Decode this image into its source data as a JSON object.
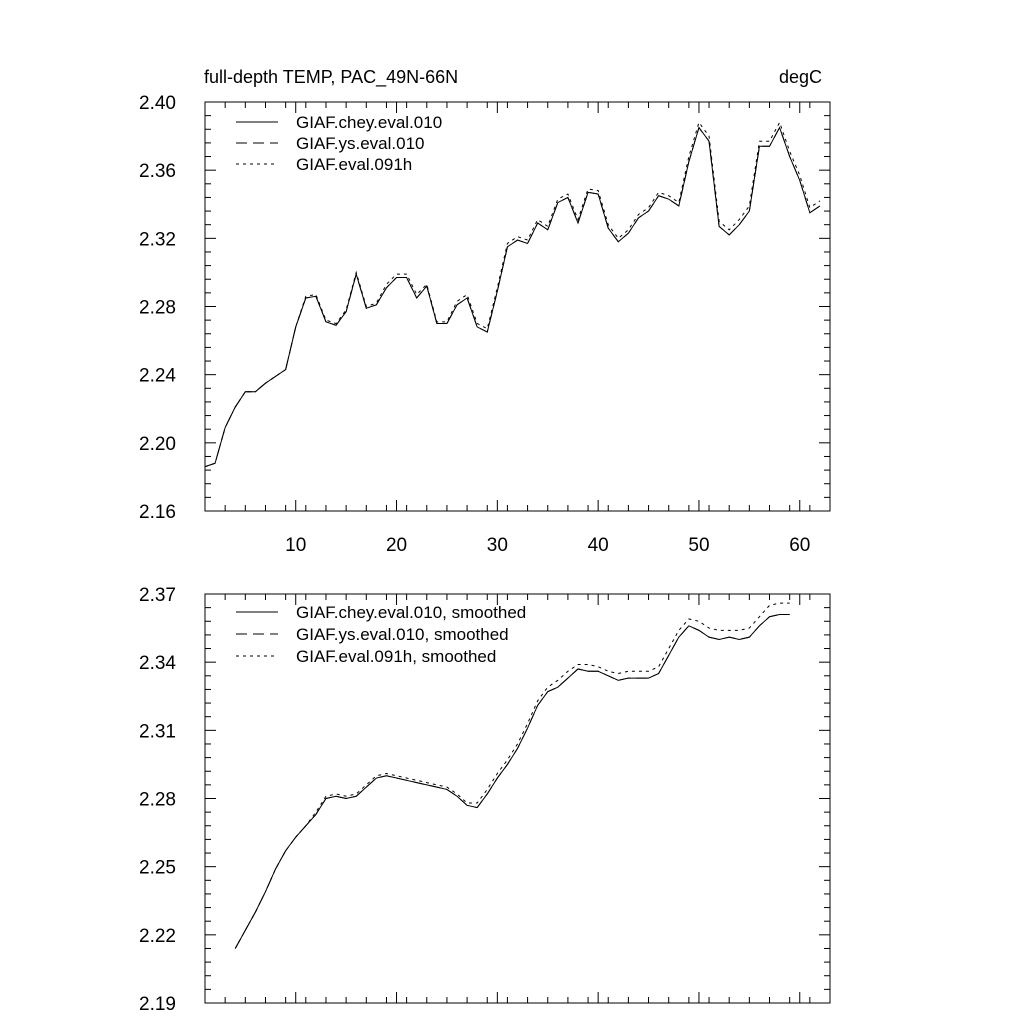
{
  "chart_data": [
    {
      "type": "line",
      "title_left": "full-depth TEMP, PAC_49N-66N",
      "title_right": "degC",
      "xlim": [
        1,
        63
      ],
      "ylim": [
        2.16,
        2.4
      ],
      "xticks": [
        10,
        20,
        30,
        40,
        50,
        60
      ],
      "xtick_labels": [
        "10",
        "20",
        "30",
        "40",
        "50",
        "60"
      ],
      "yticks": [
        2.16,
        2.2,
        2.24,
        2.28,
        2.32,
        2.36,
        2.4
      ],
      "ytick_labels": [
        "2.16",
        "2.20",
        "2.24",
        "2.28",
        "2.32",
        "2.36",
        "2.40"
      ],
      "x": [
        1,
        2,
        3,
        4,
        5,
        6,
        7,
        8,
        9,
        10,
        11,
        12,
        13,
        14,
        15,
        16,
        17,
        18,
        19,
        20,
        21,
        22,
        23,
        24,
        25,
        26,
        27,
        28,
        29,
        30,
        31,
        32,
        33,
        34,
        35,
        36,
        37,
        38,
        39,
        40,
        41,
        42,
        43,
        44,
        45,
        46,
        47,
        48,
        49,
        50,
        51,
        52,
        53,
        54,
        55,
        56,
        57,
        58,
        59,
        60,
        61,
        62
      ],
      "series": [
        {
          "name": "GIAF.chey.eval.010",
          "dash": "solid",
          "values": [
            2.186,
            2.188,
            2.209,
            2.221,
            2.23,
            2.23,
            2.235,
            2.239,
            2.243,
            2.268,
            2.285,
            2.286,
            2.271,
            2.269,
            2.277,
            2.299,
            2.279,
            2.281,
            2.291,
            2.297,
            2.297,
            2.285,
            2.292,
            2.27,
            2.27,
            2.281,
            2.285,
            2.268,
            2.265,
            2.289,
            2.315,
            2.319,
            2.317,
            2.329,
            2.325,
            2.341,
            2.344,
            2.329,
            2.347,
            2.346,
            2.326,
            2.318,
            2.323,
            2.332,
            2.336,
            2.345,
            2.343,
            2.339,
            2.365,
            2.385,
            2.377,
            2.327,
            2.322,
            2.328,
            2.336,
            2.374,
            2.374,
            2.385,
            2.368,
            2.354,
            2.335,
            2.339
          ]
        },
        {
          "name": "GIAF.ys.eval.010",
          "dash": "long",
          "values": [
            2.186,
            2.188,
            2.209,
            2.221,
            2.23,
            2.23,
            2.235,
            2.239,
            2.243,
            2.268,
            2.285,
            2.286,
            2.271,
            2.269,
            2.277,
            2.299,
            2.279,
            2.281,
            2.291,
            2.297,
            2.297,
            2.285,
            2.292,
            2.27,
            2.27,
            2.281,
            2.285,
            2.268,
            2.265,
            2.289,
            2.315,
            2.319,
            2.317,
            2.329,
            2.325,
            2.341,
            2.344,
            2.329,
            2.347,
            2.346,
            2.326,
            2.318,
            2.323,
            2.332,
            2.336,
            2.345,
            2.343,
            2.339,
            2.365,
            2.385,
            2.377,
            2.327,
            2.322,
            2.328,
            2.336,
            2.374,
            2.374,
            2.385,
            2.368,
            2.354,
            2.335,
            2.339
          ]
        },
        {
          "name": "GIAF.eval.091h",
          "dash": "short",
          "values": [
            2.186,
            2.188,
            2.209,
            2.221,
            2.23,
            2.23,
            2.235,
            2.239,
            2.243,
            2.268,
            2.286,
            2.287,
            2.272,
            2.27,
            2.278,
            2.3,
            2.28,
            2.282,
            2.293,
            2.299,
            2.299,
            2.287,
            2.293,
            2.271,
            2.271,
            2.283,
            2.287,
            2.27,
            2.267,
            2.291,
            2.317,
            2.321,
            2.319,
            2.331,
            2.327,
            2.343,
            2.346,
            2.331,
            2.349,
            2.348,
            2.328,
            2.32,
            2.325,
            2.334,
            2.338,
            2.347,
            2.345,
            2.341,
            2.368,
            2.388,
            2.38,
            2.33,
            2.325,
            2.331,
            2.339,
            2.377,
            2.377,
            2.388,
            2.371,
            2.357,
            2.338,
            2.342
          ]
        }
      ]
    },
    {
      "type": "line",
      "xlim": [
        1,
        63
      ],
      "ylim": [
        2.19,
        2.37
      ],
      "xticks": [
        10,
        20,
        30,
        40,
        50,
        60
      ],
      "yticks": [
        2.19,
        2.22,
        2.25,
        2.28,
        2.31,
        2.34,
        2.37
      ],
      "ytick_labels": [
        "2.19",
        "2.22",
        "2.25",
        "2.28",
        "2.31",
        "2.34",
        "2.37"
      ],
      "x": [
        4,
        5,
        6,
        7,
        8,
        9,
        10,
        11,
        12,
        13,
        14,
        15,
        16,
        17,
        18,
        19,
        20,
        21,
        22,
        23,
        24,
        25,
        26,
        27,
        28,
        29,
        30,
        31,
        32,
        33,
        34,
        35,
        36,
        37,
        38,
        39,
        40,
        41,
        42,
        43,
        44,
        45,
        46,
        47,
        48,
        49,
        50,
        51,
        52,
        53,
        54,
        55,
        56,
        57,
        58,
        59
      ],
      "series": [
        {
          "name": "GIAF.chey.eval.010, smoothed",
          "dash": "solid",
          "values": [
            2.214,
            2.222,
            2.23,
            2.239,
            2.249,
            2.257,
            2.263,
            2.268,
            2.273,
            2.28,
            2.281,
            2.28,
            2.281,
            2.285,
            2.289,
            2.29,
            2.289,
            2.288,
            2.287,
            2.286,
            2.285,
            2.284,
            2.281,
            2.277,
            2.276,
            2.282,
            2.289,
            2.295,
            2.302,
            2.311,
            2.321,
            2.327,
            2.329,
            2.333,
            2.337,
            2.336,
            2.336,
            2.334,
            2.332,
            2.333,
            2.333,
            2.333,
            2.335,
            2.343,
            2.351,
            2.356,
            2.354,
            2.351,
            2.35,
            2.351,
            2.35,
            2.351,
            2.356,
            2.36,
            2.361,
            2.361
          ]
        },
        {
          "name": "GIAF.ys.eval.010, smoothed",
          "dash": "long",
          "values": [
            2.214,
            2.222,
            2.23,
            2.239,
            2.249,
            2.257,
            2.263,
            2.268,
            2.273,
            2.28,
            2.281,
            2.28,
            2.281,
            2.285,
            2.289,
            2.29,
            2.289,
            2.288,
            2.287,
            2.286,
            2.285,
            2.284,
            2.281,
            2.277,
            2.276,
            2.282,
            2.289,
            2.295,
            2.302,
            2.311,
            2.321,
            2.327,
            2.329,
            2.333,
            2.337,
            2.336,
            2.336,
            2.334,
            2.332,
            2.333,
            2.333,
            2.333,
            2.335,
            2.343,
            2.351,
            2.356,
            2.354,
            2.351,
            2.35,
            2.351,
            2.35,
            2.351,
            2.356,
            2.36,
            2.361,
            2.361
          ]
        },
        {
          "name": "GIAF.eval.091h, smoothed",
          "dash": "short",
          "values": [
            2.214,
            2.222,
            2.23,
            2.239,
            2.249,
            2.257,
            2.263,
            2.268,
            2.274,
            2.281,
            2.282,
            2.281,
            2.282,
            2.286,
            2.29,
            2.291,
            2.29,
            2.289,
            2.288,
            2.287,
            2.286,
            2.285,
            2.282,
            2.278,
            2.278,
            2.284,
            2.291,
            2.297,
            2.304,
            2.313,
            2.323,
            2.329,
            2.332,
            2.336,
            2.339,
            2.339,
            2.338,
            2.336,
            2.335,
            2.336,
            2.336,
            2.336,
            2.338,
            2.346,
            2.354,
            2.359,
            2.358,
            2.355,
            2.354,
            2.354,
            2.354,
            2.355,
            2.36,
            2.365,
            2.366,
            2.366
          ]
        }
      ]
    }
  ]
}
